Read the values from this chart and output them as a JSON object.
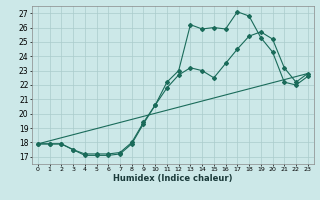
{
  "xlabel": "Humidex (Indice chaleur)",
  "bg_color": "#cce8e8",
  "grid_color": "#aacccc",
  "line_color": "#1a6b5a",
  "xlim": [
    -0.5,
    23.5
  ],
  "ylim": [
    16.5,
    27.5
  ],
  "yticks": [
    17,
    18,
    19,
    20,
    21,
    22,
    23,
    24,
    25,
    26,
    27
  ],
  "xticks": [
    0,
    1,
    2,
    3,
    4,
    5,
    6,
    7,
    8,
    9,
    10,
    11,
    12,
    13,
    14,
    15,
    16,
    17,
    18,
    19,
    20,
    21,
    22,
    23
  ],
  "line1_x": [
    0,
    1,
    2,
    3,
    4,
    5,
    6,
    7,
    8,
    9,
    10,
    11,
    12,
    13,
    14,
    15,
    16,
    17,
    18,
    19,
    20,
    21,
    22,
    23
  ],
  "line1_y": [
    17.9,
    17.9,
    17.9,
    17.5,
    17.1,
    17.1,
    17.1,
    17.2,
    17.9,
    19.3,
    20.6,
    22.2,
    23.0,
    26.2,
    25.9,
    26.0,
    25.9,
    27.1,
    26.8,
    25.3,
    24.3,
    22.2,
    22.0,
    22.6
  ],
  "line2_x": [
    0,
    1,
    2,
    3,
    4,
    5,
    6,
    7,
    8,
    9,
    10,
    11,
    12,
    13,
    14,
    15,
    16,
    17,
    18,
    19,
    20,
    21,
    22,
    23
  ],
  "line2_y": [
    17.9,
    17.9,
    17.9,
    17.5,
    17.2,
    17.2,
    17.2,
    17.3,
    18.0,
    19.4,
    20.6,
    21.8,
    22.7,
    23.2,
    23.0,
    22.5,
    23.5,
    24.5,
    25.4,
    25.7,
    25.2,
    23.2,
    22.2,
    22.8
  ],
  "line3_x": [
    0,
    23
  ],
  "line3_y": [
    17.9,
    22.8
  ]
}
